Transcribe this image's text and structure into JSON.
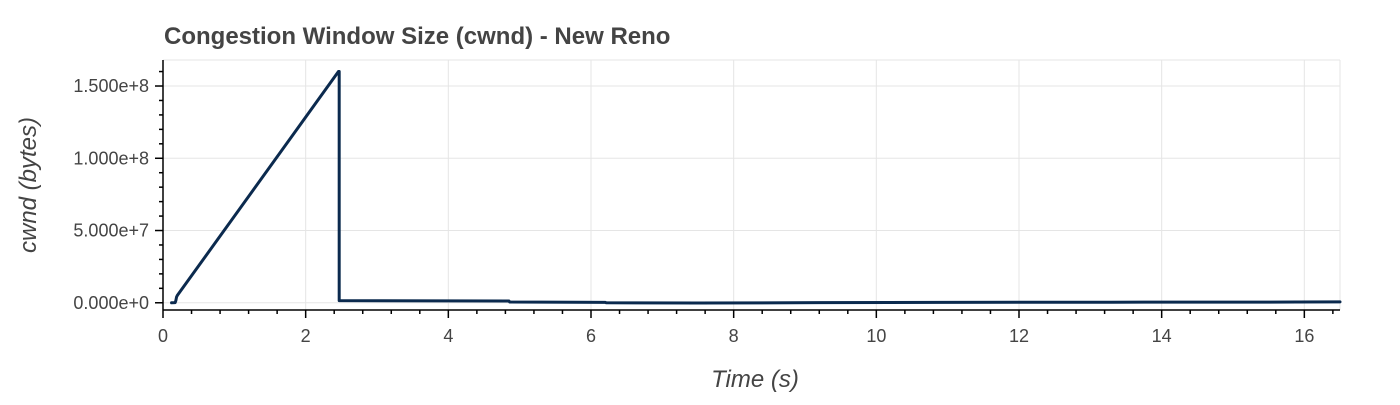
{
  "chart_data": {
    "type": "line",
    "title": "Congestion Window Size (cwnd) - New Reno",
    "xlabel": "Time (s)",
    "ylabel": "cwnd (bytes)",
    "xlim": [
      0,
      16.5
    ],
    "ylim": [
      -5000000,
      168000000
    ],
    "x_ticks": [
      0,
      2,
      4,
      6,
      8,
      10,
      12,
      14,
      16
    ],
    "x_tick_labels": [
      "0",
      "2",
      "4",
      "6",
      "8",
      "10",
      "12",
      "14",
      "16"
    ],
    "y_ticks": [
      0,
      50000000,
      100000000,
      150000000
    ],
    "y_tick_labels": [
      "0.000e+0",
      "5.000e+7",
      "1.000e+8",
      "1.500e+8"
    ],
    "grid": true,
    "series": [
      {
        "color": "#0b2a4e",
        "x": [
          0.12,
          0.17,
          0.18,
          0.19,
          0.2,
          2.46,
          2.47,
          2.47,
          4.85,
          4.86,
          6.2,
          6.21,
          7.5,
          9.2,
          10.9,
          13.3,
          15.9,
          16.5
        ],
        "y": [
          0,
          100000,
          1500000,
          4000000,
          5000000,
          160000000,
          160000000,
          1500000,
          1200000,
          500000,
          300000,
          0,
          -200000,
          100000,
          300000,
          400000,
          500000,
          600000
        ]
      }
    ]
  }
}
